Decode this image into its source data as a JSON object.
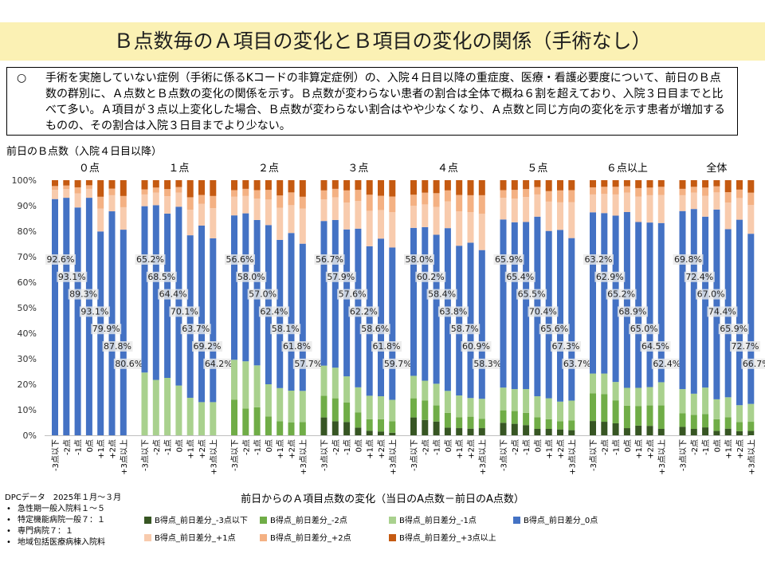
{
  "title": "Ｂ点数毎のＡ項目の変化とＢ項目の変化の関係（手術なし）",
  "description": {
    "bullet": "○",
    "text": "手術を実施していない症例（手術に係るKコードの非算定症例）の、入院４日目以降の重症度、医療・看護必要度について、前日のＢ点数の群別に、Ａ点数とＢ点数の変化の関係を示す。Ｂ点数が変わらない患者の割合は全体で概ね６割を超えており、入院３日目までと比べて多い。Ａ項目が３点以上変化した場合、Ｂ点数が変わらない割合はやや少なくなり、Ａ点数と同じ方向の変化を示す患者が増加するものの、その割合は入院３日目までより少ない。"
  },
  "footnote": {
    "heading": "DPCデータ　2025年１月～３月",
    "items": [
      "急性期一般入院料１～５",
      "特定機能病院一般７：１",
      "専門病院７：１",
      "地域包括医療病棟入院料"
    ]
  },
  "chart_data": {
    "type": "bar",
    "stacked": true,
    "group_axis_title": "前日のＢ点数（入院４日目以降）",
    "xlabel": "前日からのＡ項目点数の変化（当日のA点数－前日のA点数）",
    "groups": [
      "０点",
      "１点",
      "２点",
      "３点",
      "４点",
      "５点",
      "６点以上",
      "全体"
    ],
    "categories": [
      "-3点以下",
      "-2点",
      "-1点",
      "0点",
      "+1点",
      "+2点",
      "+3点以上"
    ],
    "yticks": [
      "0%",
      "10%",
      "20%",
      "30%",
      "40%",
      "50%",
      "60%",
      "70%",
      "80%",
      "90%",
      "100%"
    ],
    "ylim": [
      0,
      100
    ],
    "grid": false,
    "legend_position": "bottom",
    "series_names": [
      "B得点_前日差分_-3点以下",
      "B得点_前日差分_-2点",
      "B得点_前日差分_-1点",
      "B得点_前日差分_0点",
      "B得点_前日差分_+1点",
      "B得点_前日差分_+2点",
      "B得点_前日差分_+3点以上"
    ],
    "series_colors": [
      "#375623",
      "#70ad47",
      "#a9d18e",
      "#4472c4",
      "#f8cbad",
      "#f4b183",
      "#c55a11"
    ],
    "data_labels": [
      [
        "92.6%",
        "93.1%",
        "89.3%",
        "93.1%",
        "79.9%",
        "87.8%",
        "80.6%"
      ],
      [
        "65.2%",
        "68.5%",
        "64.4%",
        "70.1%",
        "63.7%",
        "69.2%",
        "64.2%"
      ],
      [
        "56.6%",
        "58.0%",
        "57.0%",
        "62.4%",
        "58.1%",
        "61.8%",
        "57.7%"
      ],
      [
        "56.7%",
        "57.9%",
        "57.6%",
        "62.2%",
        "58.6%",
        "61.8%",
        "59.7%"
      ],
      [
        "58.0%",
        "60.2%",
        "58.4%",
        "63.8%",
        "58.7%",
        "60.9%",
        "58.3%"
      ],
      [
        "65.9%",
        "65.4%",
        "65.5%",
        "70.4%",
        "65.6%",
        "67.3%",
        "63.7%"
      ],
      [
        "63.2%",
        "62.9%",
        "65.2%",
        "68.9%",
        "65.0%",
        "64.5%",
        "62.4%"
      ],
      [
        "69.8%",
        "72.4%",
        "67.0%",
        "74.4%",
        "65.9%",
        "72.7%",
        "66.7%"
      ]
    ],
    "values": [
      [
        [
          0,
          0,
          0,
          92.6,
          3.6,
          1.5,
          2.3
        ],
        [
          0,
          0,
          0,
          93.1,
          3.4,
          1.4,
          2.1
        ],
        [
          0,
          0,
          0,
          89.3,
          5.5,
          2.4,
          2.8
        ],
        [
          0,
          0,
          0,
          93.1,
          3.5,
          1.4,
          2.0
        ],
        [
          0,
          0,
          0,
          79.9,
          9.0,
          4.6,
          6.5
        ],
        [
          0,
          0,
          0,
          87.8,
          6.3,
          2.6,
          3.3
        ],
        [
          0,
          0,
          0,
          80.6,
          8.8,
          4.4,
          6.2
        ]
      ],
      [
        [
          0,
          0,
          24.6,
          65.2,
          4.6,
          2.0,
          3.6
        ],
        [
          0,
          0,
          21.7,
          68.5,
          4.9,
          2.0,
          2.9
        ],
        [
          0,
          0,
          22.5,
          64.4,
          6.8,
          2.8,
          3.5
        ],
        [
          0,
          0,
          19.5,
          70.1,
          5.5,
          2.2,
          2.7
        ],
        [
          0,
          0,
          14.7,
          63.7,
          10.0,
          4.9,
          6.7
        ],
        [
          0,
          0,
          13.0,
          69.2,
          8.5,
          3.5,
          5.8
        ],
        [
          0,
          0,
          13.0,
          64.2,
          11.8,
          4.8,
          6.2
        ]
      ],
      [
        [
          0,
          14.0,
          15.6,
          56.6,
          7.3,
          2.6,
          3.9
        ],
        [
          0,
          10.5,
          18.5,
          58.0,
          6.8,
          2.8,
          3.4
        ],
        [
          0,
          11.0,
          16.4,
          57.0,
          8.4,
          3.3,
          3.9
        ],
        [
          0,
          7.4,
          12.6,
          62.4,
          10.0,
          3.8,
          3.8
        ],
        [
          0,
          5.5,
          13.0,
          58.1,
          12.6,
          4.8,
          6.0
        ],
        [
          0,
          5.0,
          12.5,
          61.8,
          10.9,
          5.0,
          4.8
        ],
        [
          0,
          5.2,
          12.2,
          57.7,
          13.8,
          4.6,
          6.5
        ]
      ],
      [
        [
          7.0,
          8.5,
          11.8,
          56.7,
          8.5,
          3.5,
          4.0
        ],
        [
          5.5,
          9.0,
          12.0,
          57.9,
          8.9,
          3.3,
          3.4
        ],
        [
          5.2,
          7.7,
          10.2,
          57.6,
          10.5,
          4.8,
          4.0
        ],
        [
          3.0,
          6.0,
          9.8,
          62.2,
          10.8,
          4.4,
          3.8
        ],
        [
          1.8,
          4.5,
          9.2,
          58.6,
          13.9,
          6.3,
          5.7
        ],
        [
          1.5,
          4.8,
          9.0,
          61.8,
          11.2,
          5.6,
          6.1
        ],
        [
          1.0,
          4.5,
          8.4,
          59.7,
          13.9,
          6.1,
          6.4
        ]
      ],
      [
        [
          7.0,
          7.5,
          8.8,
          58.0,
          8.7,
          4.3,
          5.7
        ],
        [
          6.0,
          7.6,
          7.8,
          60.2,
          8.9,
          4.6,
          4.9
        ],
        [
          5.4,
          6.3,
          8.5,
          58.4,
          10.9,
          5.4,
          5.1
        ],
        [
          3.0,
          5.8,
          8.6,
          63.8,
          10.5,
          4.3,
          4.0
        ],
        [
          2.8,
          4.3,
          8.5,
          58.7,
          13.5,
          6.4,
          5.8
        ],
        [
          2.6,
          4.7,
          7.3,
          60.9,
          12.0,
          6.6,
          5.9
        ],
        [
          2.8,
          3.7,
          7.8,
          58.3,
          14.2,
          7.3,
          5.9
        ]
      ],
      [
        [
          4.9,
          4.9,
          8.9,
          65.9,
          8.5,
          3.0,
          3.9
        ],
        [
          4.5,
          5.0,
          8.6,
          65.4,
          9.3,
          3.4,
          3.8
        ],
        [
          4.0,
          4.8,
          9.3,
          65.5,
          9.8,
          3.1,
          3.5
        ],
        [
          2.5,
          4.6,
          8.2,
          70.4,
          8.7,
          2.9,
          2.7
        ],
        [
          2.5,
          3.8,
          8.2,
          65.6,
          11.5,
          4.1,
          4.3
        ],
        [
          2.3,
          3.2,
          7.7,
          67.3,
          10.8,
          4.7,
          4.0
        ],
        [
          2.0,
          3.8,
          7.8,
          63.7,
          14.1,
          4.7,
          3.9
        ]
      ],
      [
        [
          5.6,
          10.8,
          7.8,
          63.2,
          7.0,
          2.8,
          2.8
        ],
        [
          5.3,
          10.8,
          8.1,
          62.9,
          7.5,
          2.8,
          2.6
        ],
        [
          4.7,
          9.0,
          7.2,
          65.2,
          8.3,
          3.0,
          2.6
        ],
        [
          2.8,
          8.8,
          7.0,
          68.9,
          7.6,
          2.5,
          2.4
        ],
        [
          3.8,
          7.7,
          7.1,
          65.0,
          10.0,
          3.3,
          3.1
        ],
        [
          3.7,
          8.0,
          7.2,
          64.5,
          10.7,
          3.0,
          2.9
        ],
        [
          2.5,
          9.2,
          9.1,
          62.4,
          11.0,
          3.2,
          2.6
        ]
      ],
      [
        [
          3.3,
          5.3,
          9.5,
          69.8,
          6.2,
          2.5,
          3.4
        ],
        [
          2.5,
          5.5,
          8.3,
          72.4,
          6.4,
          2.3,
          2.6
        ],
        [
          3.1,
          5.2,
          10.4,
          67.0,
          8.2,
          3.2,
          2.9
        ],
        [
          1.7,
          4.6,
          7.8,
          74.4,
          6.7,
          2.4,
          2.4
        ],
        [
          2.6,
          4.5,
          7.8,
          65.9,
          10.4,
          4.1,
          4.7
        ],
        [
          1.6,
          3.6,
          6.6,
          72.7,
          8.5,
          3.3,
          3.7
        ],
        [
          1.7,
          3.6,
          7.0,
          66.7,
          11.3,
          4.8,
          4.9
        ]
      ]
    ]
  }
}
